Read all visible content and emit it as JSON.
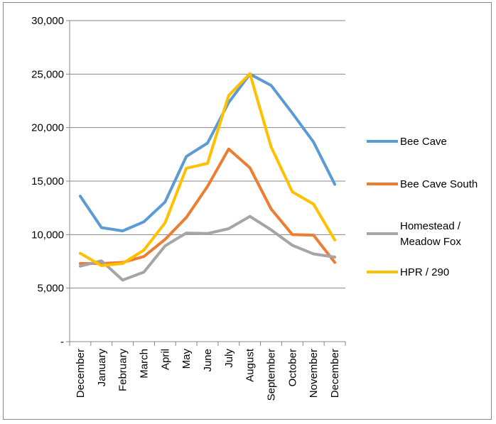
{
  "chart_data": {
    "type": "line",
    "title": "",
    "xlabel": "",
    "ylabel": "",
    "ylim": [
      0,
      30000
    ],
    "yticks": [
      {
        "value": 0,
        "label": "-"
      },
      {
        "value": 5000,
        "label": "5,000"
      },
      {
        "value": 10000,
        "label": "10,000"
      },
      {
        "value": 15000,
        "label": "15,000"
      },
      {
        "value": 20000,
        "label": "20,000"
      },
      {
        "value": 25000,
        "label": "25,000"
      },
      {
        "value": 30000,
        "label": "30,000"
      }
    ],
    "grid": true,
    "legend_position": "right",
    "categories": [
      "December",
      "January",
      "February",
      "March",
      "April",
      "May",
      "June",
      "July",
      "August",
      "September",
      "October",
      "November",
      "December"
    ],
    "series": [
      {
        "name": "Bee Cave",
        "legend_lines": [
          "Bee Cave"
        ],
        "color": "#5B9BD5",
        "values": [
          13600,
          10650,
          10350,
          11200,
          13050,
          17300,
          18550,
          22350,
          25000,
          23950,
          21350,
          18650,
          14700
        ]
      },
      {
        "name": "Bee Cave South",
        "legend_lines": [
          "Bee Cave South"
        ],
        "color": "#ED7D31",
        "values": [
          7300,
          7300,
          7400,
          7950,
          9550,
          11600,
          14500,
          18000,
          16250,
          12400,
          10000,
          9950,
          7400
        ]
      },
      {
        "name": "Homestead / Meadow Fox",
        "legend_lines": [
          "Homestead /",
          "Meadow Fox"
        ],
        "color": "#A5A5A5",
        "values": [
          7050,
          7550,
          5750,
          6500,
          8950,
          10150,
          10100,
          10550,
          11700,
          10450,
          9000,
          8200,
          7900
        ]
      },
      {
        "name": "HPR / 290",
        "legend_lines": [
          "HPR / 290"
        ],
        "color": "#FFC000",
        "values": [
          8250,
          7100,
          7300,
          8550,
          11100,
          16200,
          16650,
          23000,
          25050,
          18200,
          14000,
          12850,
          9500
        ]
      }
    ]
  }
}
